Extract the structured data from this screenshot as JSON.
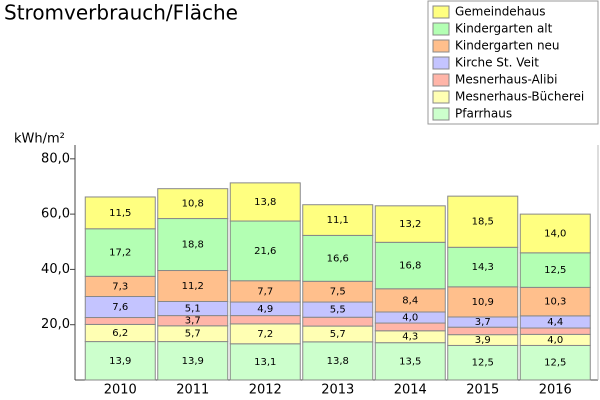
{
  "chart_data": {
    "type": "stacked-bar",
    "title": "Stromverbrauch/Fläche",
    "y_label": "kWh/m²",
    "categories": [
      "2010",
      "2011",
      "2012",
      "2013",
      "2014",
      "2015",
      "2016"
    ],
    "series": [
      {
        "name": "Gemeindehaus",
        "color": "#ffff80",
        "values": [
          11.5,
          10.8,
          13.8,
          11.1,
          13.2,
          18.5,
          14.0
        ],
        "value_labels": [
          "11,5",
          "10,8",
          "13,8",
          "11,1",
          "13,2",
          "18,5",
          "14,0"
        ]
      },
      {
        "name": "Kindergarten alt",
        "color": "#b3ffb3",
        "values": [
          17.2,
          18.8,
          21.6,
          16.6,
          16.8,
          14.3,
          12.5
        ],
        "value_labels": [
          "17,2",
          "18,8",
          "21,6",
          "16,6",
          "16,8",
          "14,3",
          "12,5"
        ]
      },
      {
        "name": "Kindergarten neu",
        "color": "#ffbf8c",
        "values": [
          7.3,
          11.2,
          7.7,
          7.5,
          8.4,
          10.9,
          10.3
        ],
        "value_labels": [
          "7,3",
          "11,2",
          "7,7",
          "7,5",
          "8,4",
          "10,9",
          "10,3"
        ]
      },
      {
        "name": "Kirche St. Veit",
        "color": "#c4c4ff",
        "values": [
          7.6,
          5.1,
          4.9,
          5.5,
          4.0,
          3.7,
          4.4
        ],
        "value_labels": [
          "7,6",
          "5,1",
          "4,9",
          "5,5",
          "4,0",
          "3,7",
          "4,4"
        ]
      },
      {
        "name": "Mesnerhaus-Alibi",
        "color": "#ffb5a8",
        "values": [
          2.5,
          3.7,
          3.0,
          3.2,
          2.8,
          2.7,
          2.3
        ],
        "value_labels": [
          null,
          "3,7",
          null,
          null,
          null,
          null,
          null
        ]
      },
      {
        "name": "Mesnerhaus-Bücherei",
        "color": "#ffffb3",
        "values": [
          6.2,
          5.7,
          7.2,
          5.7,
          4.3,
          3.9,
          4.0
        ],
        "value_labels": [
          "6,2",
          "5,7",
          "7,2",
          "5,7",
          "4,3",
          "3,9",
          "4,0"
        ]
      },
      {
        "name": "Pfarrhaus",
        "color": "#ccffcc",
        "values": [
          13.9,
          13.9,
          13.1,
          13.8,
          13.5,
          12.5,
          12.5
        ],
        "value_labels": [
          "13,9",
          "13,9",
          "13,1",
          "13,8",
          "13,5",
          "12,5",
          "12,5"
        ]
      }
    ],
    "ylim": [
      0,
      85
    ],
    "yticks": [
      {
        "value": 20,
        "label": "20,0"
      },
      {
        "value": 40,
        "label": "40,0"
      },
      {
        "value": 60,
        "label": "60,0"
      },
      {
        "value": 80,
        "label": "80,0"
      }
    ],
    "grid": false
  }
}
